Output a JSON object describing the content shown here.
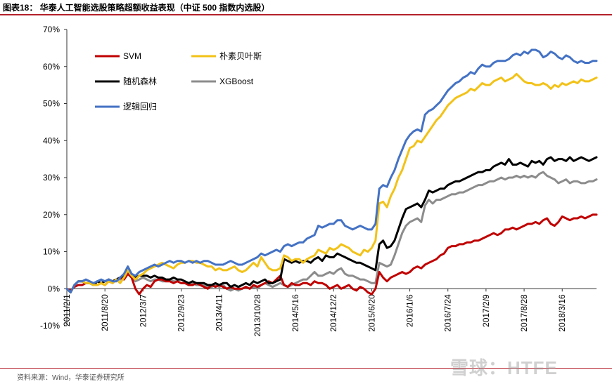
{
  "figure": {
    "title": "图表18：  华泰人工智能选股策略超额收益表现（中证 500 指数内选股）",
    "source": "资料来源：Wind，华泰证券研究所",
    "watermark": "雪球：HTFE"
  },
  "chart_data": {
    "type": "line",
    "title": "华泰人工智能选股策略超额收益表现（中证 500 指数内选股）",
    "xlabel": "",
    "ylabel": "",
    "ylim": [
      -10,
      70
    ],
    "y_ticks": [
      -10,
      0,
      10,
      20,
      30,
      40,
      50,
      60,
      70
    ],
    "y_tick_labels": [
      "-10%",
      "0%",
      "10%",
      "20%",
      "30%",
      "40%",
      "50%",
      "60%",
      "70%"
    ],
    "x_tick_labels": [
      "2011/2/1",
      "2011/8/20",
      "2012/3/7",
      "2012/9/23",
      "2013/4/11",
      "2013/10/28",
      "2014/5/16",
      "2014/12/2",
      "2015/6/20",
      "2016/1/6",
      "2016/7/24",
      "2017/2/9",
      "2017/8/28",
      "2018/3/16"
    ],
    "x_tick_index": [
      0,
      1,
      2,
      3,
      4,
      5,
      6,
      7,
      8,
      9,
      10,
      11,
      12,
      13
    ],
    "x": [
      0,
      0.1,
      0.2,
      0.3,
      0.4,
      0.5,
      0.6,
      0.7,
      0.8,
      0.9,
      1.0,
      1.1,
      1.2,
      1.3,
      1.4,
      1.5,
      1.6,
      1.7,
      1.8,
      1.9,
      2.0,
      2.1,
      2.2,
      2.3,
      2.4,
      2.5,
      2.6,
      2.7,
      2.8,
      2.9,
      3.0,
      3.1,
      3.2,
      3.3,
      3.4,
      3.5,
      3.6,
      3.7,
      3.8,
      3.9,
      4.0,
      4.1,
      4.2,
      4.3,
      4.4,
      4.5,
      4.6,
      4.7,
      4.8,
      4.9,
      5.0,
      5.1,
      5.2,
      5.3,
      5.4,
      5.5,
      5.6,
      5.7,
      5.8,
      5.9,
      6.0,
      6.1,
      6.2,
      6.3,
      6.4,
      6.5,
      6.6,
      6.7,
      6.8,
      6.9,
      7.0,
      7.1,
      7.2,
      7.3,
      7.4,
      7.5,
      7.6,
      7.7,
      7.8,
      7.9,
      8.0,
      8.1,
      8.2,
      8.3,
      8.4,
      8.5,
      8.6,
      8.7,
      8.8,
      8.9,
      9.0,
      9.1,
      9.2,
      9.3,
      9.4,
      9.5,
      9.6,
      9.7,
      9.8,
      9.9,
      10.0,
      10.1,
      10.2,
      10.3,
      10.4,
      10.5,
      10.6,
      10.7,
      10.8,
      10.9,
      11.0,
      11.1,
      11.2,
      11.3,
      11.4,
      11.5,
      11.6,
      11.7,
      11.8,
      11.9,
      12.0,
      12.1,
      12.2,
      12.3,
      12.4,
      12.5,
      12.6,
      12.7,
      12.8,
      12.9,
      13.0,
      13.1,
      13.2,
      13.3,
      13.4,
      13.5,
      13.6,
      13.7,
      13.8,
      13.9
    ],
    "series": [
      {
        "name": "SVM",
        "color": "#c00000",
        "values": [
          0.0,
          -0.5,
          0.5,
          1.0,
          1.0,
          1.5,
          1.5,
          1.5,
          1.0,
          1.5,
          1.0,
          2.0,
          1.5,
          2.5,
          3.0,
          2.5,
          4.0,
          3.0,
          0.0,
          -1.5,
          0.0,
          1.0,
          0.5,
          2.0,
          2.5,
          2.5,
          2.0,
          2.0,
          1.5,
          2.0,
          1.5,
          1.5,
          1.0,
          1.0,
          1.5,
          1.0,
          0.5,
          0.0,
          1.0,
          0.5,
          1.0,
          0.5,
          0.0,
          0.5,
          0.0,
          0.0,
          0.0,
          0.5,
          0.0,
          1.0,
          0.5,
          1.0,
          1.5,
          2.0,
          1.5,
          2.5,
          3.5,
          1.0,
          0.5,
          1.5,
          1.0,
          1.0,
          1.5,
          1.5,
          1.0,
          2.0,
          1.5,
          1.5,
          1.0,
          0.0,
          0.5,
          1.0,
          0.0,
          0.5,
          1.0,
          0.0,
          -0.5,
          0.5,
          0.0,
          -1.0,
          -1.5,
          0.0,
          4.5,
          3.0,
          2.0,
          3.0,
          3.5,
          4.0,
          4.5,
          4.0,
          4.5,
          5.5,
          6.0,
          5.5,
          6.5,
          7.0,
          7.5,
          8.0,
          9.0,
          9.5,
          11.0,
          11.5,
          11.5,
          12.0,
          12.0,
          12.5,
          12.5,
          13.0,
          13.0,
          13.5,
          14.0,
          14.5,
          15.0,
          14.5,
          15.0,
          16.0,
          16.0,
          16.5,
          16.0,
          16.5,
          17.0,
          17.5,
          17.5,
          18.0,
          17.5,
          18.5,
          19.0,
          17.5,
          17.0,
          18.0,
          19.5,
          19.0,
          18.5,
          19.0,
          19.0,
          19.5,
          19.0,
          19.5,
          20.0,
          20.0
        ]
      },
      {
        "name": "朴素贝叶斯",
        "color": "#f2c218",
        "values": [
          0.0,
          -1.0,
          1.0,
          2.0,
          2.0,
          1.5,
          1.5,
          1.0,
          1.0,
          1.5,
          1.0,
          2.0,
          1.5,
          2.5,
          1.5,
          3.0,
          5.0,
          3.5,
          2.5,
          3.5,
          4.0,
          5.0,
          5.5,
          6.0,
          6.5,
          7.0,
          6.5,
          6.0,
          5.5,
          6.5,
          7.0,
          7.0,
          7.5,
          7.5,
          7.0,
          7.0,
          6.5,
          6.0,
          6.0,
          5.0,
          5.5,
          5.0,
          5.0,
          5.5,
          6.0,
          5.0,
          4.5,
          5.0,
          6.0,
          7.0,
          6.0,
          8.5,
          7.0,
          5.5,
          5.0,
          5.0,
          5.5,
          9.0,
          8.5,
          7.5,
          8.0,
          8.0,
          7.0,
          8.0,
          8.5,
          9.0,
          10.5,
          10.0,
          9.5,
          11.0,
          10.5,
          11.0,
          12.0,
          11.5,
          11.0,
          10.0,
          9.5,
          9.0,
          10.5,
          10.0,
          11.0,
          13.0,
          23.0,
          23.5,
          22.0,
          25.0,
          27.0,
          30.0,
          32.0,
          35.0,
          38.0,
          38.5,
          40.0,
          39.5,
          41.0,
          42.5,
          44.0,
          45.5,
          46.5,
          48.0,
          49.5,
          50.5,
          51.5,
          52.0,
          52.5,
          53.0,
          54.0,
          53.5,
          54.5,
          55.5,
          55.0,
          55.0,
          56.0,
          56.5,
          57.0,
          56.0,
          56.5,
          57.0,
          58.0,
          57.0,
          56.0,
          55.5,
          55.5,
          55.0,
          55.0,
          55.5,
          55.0,
          54.0,
          55.0,
          54.5,
          55.5,
          55.0,
          55.5,
          56.0,
          55.5,
          56.5,
          56.0,
          56.0,
          56.5,
          57.0
        ]
      },
      {
        "name": "随机森林",
        "color": "#000000",
        "values": [
          0.0,
          -1.0,
          1.0,
          2.0,
          2.0,
          1.5,
          1.5,
          1.0,
          2.0,
          1.5,
          2.0,
          2.5,
          2.0,
          2.5,
          3.0,
          3.5,
          5.0,
          3.5,
          3.0,
          3.5,
          3.5,
          3.5,
          3.0,
          3.5,
          3.0,
          3.0,
          2.5,
          2.5,
          3.0,
          2.5,
          2.5,
          2.0,
          1.5,
          2.0,
          1.5,
          1.5,
          1.5,
          1.0,
          1.0,
          1.5,
          1.0,
          1.5,
          1.5,
          0.5,
          1.0,
          0.5,
          1.0,
          1.5,
          1.0,
          2.0,
          1.5,
          2.0,
          2.5,
          1.5,
          1.5,
          2.0,
          2.5,
          8.0,
          7.5,
          7.0,
          7.5,
          7.0,
          7.5,
          7.5,
          7.0,
          8.0,
          8.5,
          7.5,
          9.0,
          8.5,
          8.5,
          9.5,
          9.0,
          8.5,
          8.0,
          7.5,
          7.0,
          7.0,
          6.5,
          6.0,
          5.5,
          5.0,
          12.0,
          13.0,
          11.0,
          11.5,
          13.0,
          16.0,
          19.0,
          21.5,
          22.0,
          22.5,
          23.0,
          22.0,
          24.0,
          26.5,
          26.0,
          26.5,
          27.0,
          27.0,
          28.0,
          28.5,
          29.0,
          29.0,
          29.5,
          30.0,
          30.5,
          31.0,
          31.5,
          31.5,
          32.0,
          32.0,
          33.0,
          33.5,
          34.0,
          33.5,
          35.0,
          33.5,
          33.5,
          34.0,
          33.5,
          33.0,
          34.5,
          34.0,
          34.5,
          33.5,
          35.0,
          35.5,
          34.5,
          35.0,
          35.0,
          34.5,
          35.5,
          34.5,
          35.0,
          35.5,
          35.0,
          34.5,
          35.0,
          35.5
        ]
      },
      {
        "name": "XGBoost",
        "color": "#8c8c8c",
        "values": [
          0.0,
          -1.0,
          1.0,
          2.0,
          2.0,
          1.5,
          1.5,
          1.0,
          2.0,
          1.5,
          2.0,
          2.5,
          2.0,
          2.5,
          2.5,
          3.0,
          5.0,
          3.0,
          2.0,
          2.5,
          3.0,
          2.5,
          2.0,
          2.5,
          2.5,
          2.0,
          2.0,
          2.5,
          2.0,
          2.0,
          1.5,
          1.5,
          1.0,
          1.5,
          1.0,
          1.0,
          1.0,
          0.5,
          0.5,
          1.0,
          0.5,
          1.0,
          0.0,
          -0.5,
          0.0,
          -0.5,
          0.0,
          0.5,
          0.0,
          0.5,
          0.0,
          1.0,
          1.5,
          1.0,
          0.5,
          1.0,
          1.5,
          1.0,
          0.5,
          1.0,
          1.5,
          2.0,
          2.5,
          2.5,
          3.5,
          4.5,
          3.5,
          3.5,
          4.0,
          4.5,
          4.0,
          5.0,
          5.5,
          4.0,
          3.5,
          3.5,
          3.0,
          2.5,
          2.5,
          2.0,
          1.5,
          1.5,
          7.0,
          6.5,
          6.0,
          6.5,
          9.0,
          12.0,
          15.0,
          17.0,
          18.0,
          18.5,
          19.0,
          18.0,
          22.5,
          24.0,
          23.0,
          24.0,
          24.0,
          24.5,
          25.0,
          25.5,
          25.5,
          26.0,
          26.0,
          26.5,
          27.0,
          27.5,
          28.0,
          28.0,
          28.5,
          29.0,
          29.0,
          29.5,
          30.0,
          29.5,
          30.0,
          30.0,
          30.5,
          30.0,
          30.5,
          30.0,
          30.5,
          30.0,
          31.0,
          31.5,
          30.5,
          30.0,
          29.5,
          28.5,
          29.0,
          29.5,
          28.5,
          29.0,
          29.0,
          28.5,
          28.5,
          29.0,
          29.0,
          29.5
        ]
      },
      {
        "name": "逻辑回归",
        "color": "#4472c4",
        "values": [
          0.0,
          -1.0,
          1.0,
          2.0,
          2.0,
          2.5,
          2.0,
          1.5,
          2.0,
          2.5,
          2.0,
          2.5,
          2.0,
          2.0,
          3.0,
          4.0,
          6.0,
          4.0,
          3.5,
          4.5,
          5.0,
          5.5,
          6.0,
          6.5,
          6.0,
          6.5,
          7.0,
          7.5,
          7.0,
          7.5,
          7.5,
          7.0,
          7.5,
          7.0,
          7.5,
          7.0,
          7.5,
          7.5,
          7.0,
          6.5,
          6.5,
          6.5,
          7.0,
          7.5,
          7.0,
          6.5,
          6.5,
          7.0,
          7.5,
          8.0,
          8.5,
          9.5,
          9.0,
          9.5,
          10.0,
          10.5,
          10.0,
          11.5,
          12.0,
          11.5,
          12.0,
          12.5,
          12.5,
          13.5,
          14.0,
          14.5,
          17.0,
          16.5,
          17.0,
          17.5,
          17.5,
          18.5,
          18.5,
          17.0,
          16.5,
          16.0,
          16.5,
          17.0,
          16.5,
          16.0,
          16.0,
          17.5,
          27.0,
          28.0,
          27.5,
          30.0,
          32.0,
          35.0,
          37.5,
          40.0,
          41.5,
          42.5,
          43.0,
          42.5,
          47.0,
          48.0,
          48.5,
          49.5,
          50.5,
          52.0,
          53.5,
          54.5,
          55.5,
          56.0,
          57.0,
          57.5,
          58.5,
          58.0,
          59.5,
          60.5,
          60.0,
          60.0,
          61.0,
          61.5,
          61.5,
          61.5,
          62.0,
          63.0,
          63.5,
          63.0,
          64.0,
          63.5,
          64.5,
          64.5,
          64.0,
          62.5,
          63.0,
          64.0,
          63.5,
          62.5,
          62.0,
          63.0,
          62.5,
          61.5,
          61.0,
          61.5,
          61.0,
          61.0,
          61.5,
          61.5
        ]
      }
    ],
    "legend": {
      "placement": "top-left",
      "columns": 2,
      "order": [
        "SVM",
        "朴素贝叶斯",
        "随机森林",
        "XGBoost",
        "逻辑回归"
      ]
    },
    "grid": false
  }
}
